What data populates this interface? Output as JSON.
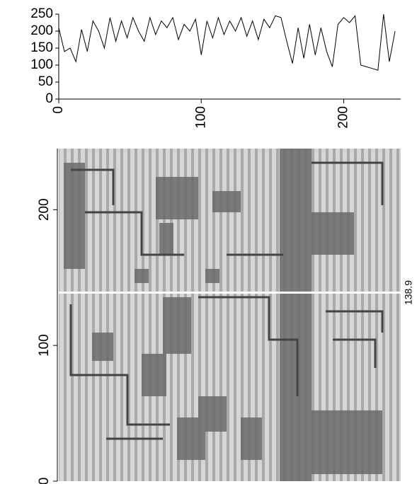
{
  "chart_data": [
    {
      "type": "line",
      "x": [
        0,
        4,
        8,
        12,
        16,
        20,
        24,
        28,
        32,
        36,
        40,
        44,
        48,
        52,
        56,
        60,
        64,
        68,
        72,
        76,
        80,
        84,
        88,
        92,
        96,
        100,
        104,
        108,
        112,
        116,
        120,
        124,
        128,
        132,
        136,
        140,
        144,
        148,
        152,
        156,
        160,
        164,
        168,
        172,
        176,
        180,
        184,
        188,
        192,
        196,
        200,
        204,
        208,
        212,
        216,
        220,
        224,
        228,
        232,
        236
      ],
      "values": [
        210,
        140,
        150,
        110,
        205,
        140,
        230,
        200,
        150,
        240,
        170,
        230,
        180,
        240,
        200,
        170,
        240,
        190,
        230,
        210,
        240,
        175,
        220,
        200,
        235,
        130,
        230,
        180,
        240,
        190,
        230,
        200,
        240,
        185,
        230,
        175,
        235,
        210,
        245,
        240,
        170,
        105,
        210,
        120,
        220,
        130,
        210,
        140,
        95,
        220,
        240,
        225,
        245,
        100,
        95,
        90,
        85,
        250,
        110,
        200
      ],
      "color": "#000000",
      "xlim": [
        0,
        240
      ],
      "xticks": [
        0,
        100,
        200
      ],
      "ylim": [
        0,
        250
      ],
      "yticks": [
        0,
        50,
        100,
        150,
        200,
        250
      ]
    },
    {
      "type": "image",
      "ylim": [
        0,
        245
      ],
      "yticks": [
        0,
        100,
        200
      ],
      "cursor": 138.9
    }
  ]
}
